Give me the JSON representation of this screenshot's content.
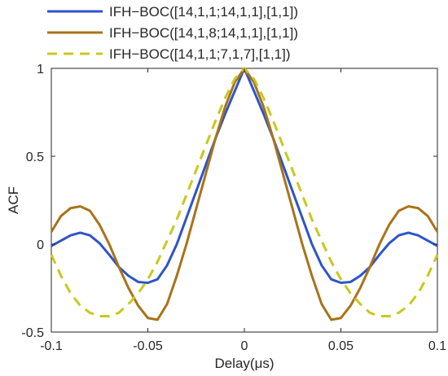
{
  "chart_data": {
    "type": "line",
    "title": "",
    "xlabel": "Delay(μs)",
    "ylabel": "ACF",
    "xlim": [
      -0.1,
      0.1
    ],
    "ylim": [
      -0.5,
      1
    ],
    "x_ticks": [
      -0.1,
      -0.05,
      0,
      0.05,
      0.1
    ],
    "x_tick_labels": [
      "-0.1",
      "-0.05",
      "0",
      "0.05",
      "0.1"
    ],
    "y_ticks": [
      -0.5,
      0,
      0.5,
      1
    ],
    "y_tick_labels": [
      "-0.5",
      "0",
      "0.5",
      "1"
    ],
    "grid": false,
    "legend_placement": "top-left, above plot",
    "x": [
      -0.1,
      -0.095,
      -0.09,
      -0.085,
      -0.08,
      -0.075,
      -0.07,
      -0.065,
      -0.06,
      -0.055,
      -0.05,
      -0.045,
      -0.04,
      -0.035,
      -0.03,
      -0.025,
      -0.02,
      -0.015,
      -0.01,
      -0.005,
      0,
      0.005,
      0.01,
      0.015,
      0.02,
      0.025,
      0.03,
      0.035,
      0.04,
      0.045,
      0.05,
      0.055,
      0.06,
      0.065,
      0.07,
      0.075,
      0.08,
      0.085,
      0.09,
      0.095,
      0.1
    ],
    "series": [
      {
        "name": "IFH−BOC([14,1,1;14,1,1],[1,1])",
        "color": "#2e54c8",
        "dash": "solid",
        "values": [
          -0.01,
          0.02,
          0.05,
          0.065,
          0.05,
          0.005,
          -0.06,
          -0.13,
          -0.18,
          -0.215,
          -0.22,
          -0.2,
          -0.12,
          0.0,
          0.15,
          0.3,
          0.45,
          0.6,
          0.74,
          0.87,
          1.0,
          0.87,
          0.74,
          0.6,
          0.45,
          0.3,
          0.15,
          0.0,
          -0.12,
          -0.2,
          -0.22,
          -0.215,
          -0.18,
          -0.13,
          -0.06,
          0.005,
          0.05,
          0.065,
          0.05,
          0.02,
          -0.01
        ]
      },
      {
        "name": "IFH−BOC([14,1,8;14,1,1],[1,1])",
        "color": "#a8731a",
        "dash": "solid",
        "values": [
          0.07,
          0.16,
          0.205,
          0.215,
          0.19,
          0.11,
          0.0,
          -0.13,
          -0.25,
          -0.35,
          -0.42,
          -0.43,
          -0.34,
          -0.18,
          0.0,
          0.2,
          0.4,
          0.6,
          0.78,
          0.92,
          1.0,
          0.92,
          0.78,
          0.6,
          0.4,
          0.2,
          0.0,
          -0.18,
          -0.34,
          -0.43,
          -0.42,
          -0.35,
          -0.25,
          -0.13,
          0.0,
          0.11,
          0.19,
          0.215,
          0.205,
          0.16,
          0.07
        ]
      },
      {
        "name": "IFH−BOC([14,1,1;7,1,7],[1,1])",
        "color": "#c8c81e",
        "dash": "dashed",
        "values": [
          -0.06,
          -0.18,
          -0.28,
          -0.35,
          -0.39,
          -0.41,
          -0.41,
          -0.39,
          -0.34,
          -0.28,
          -0.2,
          -0.1,
          0.02,
          0.14,
          0.28,
          0.42,
          0.56,
          0.7,
          0.83,
          0.94,
          1.0,
          0.94,
          0.83,
          0.7,
          0.56,
          0.42,
          0.28,
          0.14,
          0.02,
          -0.1,
          -0.2,
          -0.28,
          -0.34,
          -0.39,
          -0.41,
          -0.41,
          -0.39,
          -0.35,
          -0.28,
          -0.18,
          -0.06
        ]
      }
    ]
  }
}
